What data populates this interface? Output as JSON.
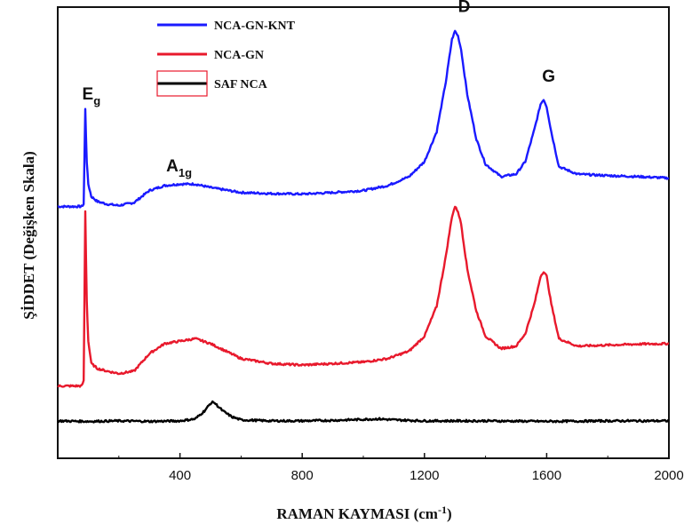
{
  "chart_data": {
    "type": "line",
    "xlabel": "RAMAN KAYMASI (cm",
    "xlabel_sup": "-1",
    "xlabel_end": ")",
    "ylabel": "ŞİDDET (Değişken Skala)",
    "xlim": [
      0,
      2000
    ],
    "xticks": [
      400,
      800,
      1200,
      1600,
      2000
    ],
    "grid": false,
    "legend_position": "top-left",
    "series": [
      {
        "name": "NCA-GN-KNT",
        "color": "#1a1aff",
        "x": [
          0,
          70,
          78,
          85,
          90,
          95,
          100,
          110,
          130,
          160,
          200,
          250,
          300,
          350,
          400,
          450,
          500,
          600,
          700,
          800,
          900,
          1000,
          1080,
          1150,
          1200,
          1240,
          1270,
          1290,
          1300,
          1310,
          1320,
          1340,
          1370,
          1400,
          1450,
          1500,
          1530,
          1560,
          1580,
          1590,
          1600,
          1615,
          1640,
          1700,
          1800,
          1900,
          2000
        ],
        "y": [
          0.4,
          0.4,
          0.4,
          0.45,
          2.35,
          1.3,
          0.85,
          0.6,
          0.5,
          0.45,
          0.42,
          0.48,
          0.72,
          0.82,
          0.85,
          0.85,
          0.78,
          0.68,
          0.66,
          0.65,
          0.68,
          0.72,
          0.82,
          1.0,
          1.3,
          1.9,
          2.9,
          3.75,
          3.92,
          3.82,
          3.55,
          2.65,
          1.75,
          1.25,
          1.0,
          1.05,
          1.3,
          1.95,
          2.45,
          2.55,
          2.4,
          1.9,
          1.2,
          1.05,
          1.02,
          1.0,
          0.97
        ]
      },
      {
        "name": "NCA-GN",
        "color": "#e8192c",
        "x": [
          0,
          70,
          78,
          85,
          90,
          95,
          100,
          110,
          130,
          160,
          200,
          250,
          300,
          350,
          400,
          450,
          500,
          600,
          700,
          800,
          900,
          1000,
          1080,
          1150,
          1200,
          1240,
          1270,
          1290,
          1300,
          1310,
          1320,
          1340,
          1370,
          1400,
          1450,
          1500,
          1530,
          1560,
          1580,
          1590,
          1600,
          1615,
          1640,
          1700,
          1800,
          1900,
          2000
        ],
        "y": [
          -3.2,
          -3.2,
          -3.2,
          -3.1,
          0.3,
          -1.5,
          -2.3,
          -2.75,
          -2.85,
          -2.9,
          -2.95,
          -2.9,
          -2.55,
          -2.35,
          -2.3,
          -2.25,
          -2.35,
          -2.65,
          -2.75,
          -2.78,
          -2.75,
          -2.72,
          -2.65,
          -2.5,
          -2.2,
          -1.6,
          -0.6,
          0.2,
          0.4,
          0.3,
          0.05,
          -0.85,
          -1.7,
          -2.2,
          -2.45,
          -2.4,
          -2.15,
          -1.55,
          -1.0,
          -0.9,
          -1.0,
          -1.55,
          -2.25,
          -2.4,
          -2.38,
          -2.36,
          -2.35
        ]
      },
      {
        "name": "SAF NCA",
        "color": "#000000",
        "x": [
          0,
          100,
          200,
          300,
          400,
          450,
          480,
          500,
          510,
          520,
          540,
          570,
          600,
          700,
          800,
          900,
          1000,
          1050,
          1100,
          1200,
          1400,
          1600,
          1800,
          2000
        ],
        "y": [
          -3.9,
          -3.91,
          -3.9,
          -3.91,
          -3.9,
          -3.86,
          -3.7,
          -3.55,
          -3.52,
          -3.58,
          -3.7,
          -3.82,
          -3.88,
          -3.9,
          -3.9,
          -3.89,
          -3.87,
          -3.86,
          -3.88,
          -3.9,
          -3.9,
          -3.91,
          -3.9,
          -3.9
        ]
      }
    ],
    "annotations": [
      {
        "text": "E",
        "sub": "g",
        "x": 80,
        "y": 2.55
      },
      {
        "text": "A",
        "sub": "1g",
        "x": 355,
        "y": 1.1
      },
      {
        "text": "D",
        "sub": "",
        "x": 1310,
        "y": 4.3
      },
      {
        "text": "G",
        "sub": "",
        "x": 1585,
        "y": 2.9
      }
    ]
  }
}
